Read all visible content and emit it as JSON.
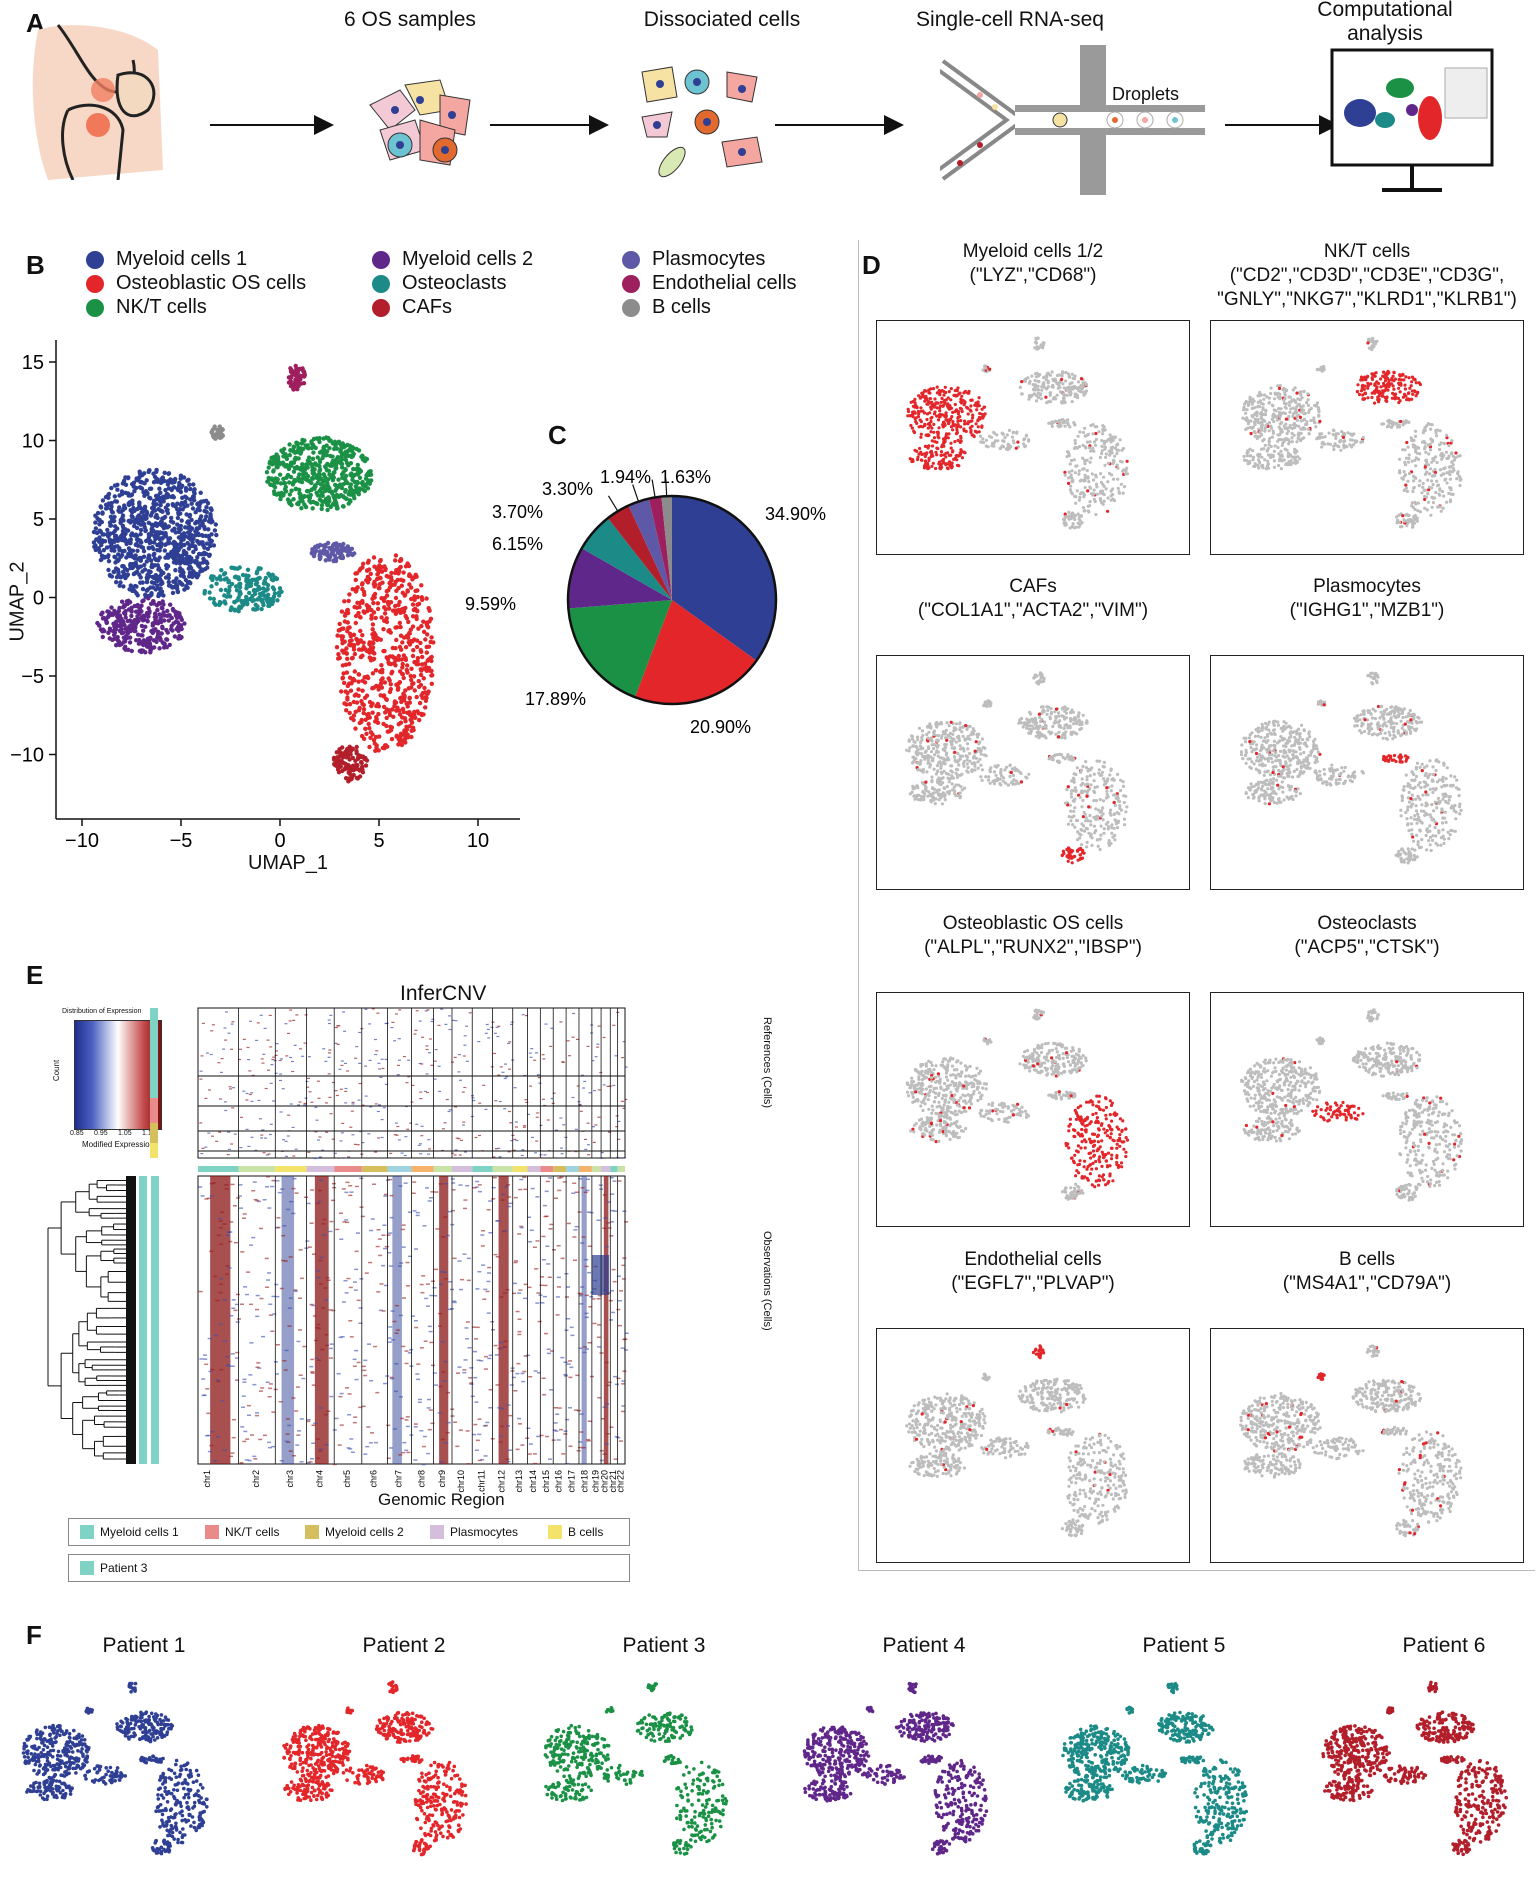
{
  "panels": {
    "A": "A",
    "B": "B",
    "C": "C",
    "D": "D",
    "E": "E",
    "F": "F"
  },
  "workflow": {
    "steps": [
      "6 OS samples",
      "Dissociated cells",
      "Single-cell RNA-seq",
      "Computational analysis"
    ],
    "droplets_label": "Droplets"
  },
  "cell_types": [
    {
      "name": "Myeloid cells 1",
      "color": "#2E3F94"
    },
    {
      "name": "Osteoblastic OS cells",
      "color": "#E3262A"
    },
    {
      "name": "NK/T cells",
      "color": "#1B9146"
    },
    {
      "name": "Myeloid cells 2",
      "color": "#60278A"
    },
    {
      "name": "Osteoclasts",
      "color": "#1C8B87"
    },
    {
      "name": "CAFs",
      "color": "#B21F2B"
    },
    {
      "name": "Plasmocytes",
      "color": "#5E59A7"
    },
    {
      "name": "Endothelial cells",
      "color": "#9E1F5E"
    },
    {
      "name": "B cells",
      "color": "#8C8C8C"
    }
  ],
  "umap_axes": {
    "xlabel": "UMAP_1",
    "ylabel": "UMAP_2",
    "xticks": [
      "−10",
      "−5",
      "0",
      "5",
      "10"
    ],
    "yticks": [
      "15",
      "10",
      "5",
      "0",
      "−5",
      "−10"
    ]
  },
  "chart_data": {
    "type": "pie",
    "categories": [
      "Myeloid cells 1",
      "Osteoblastic OS cells",
      "NK/T cells",
      "Myeloid cells 2",
      "Osteoclasts",
      "CAFs",
      "Plasmocytes",
      "Endothelial cells",
      "B cells"
    ],
    "values": [
      34.9,
      20.9,
      17.89,
      9.59,
      6.15,
      3.7,
      3.3,
      1.94,
      1.63
    ],
    "labels": [
      "34.90%",
      "20.90%",
      "17.89%",
      "9.59%",
      "6.15%",
      "3.70%",
      "3.30%",
      "1.94%",
      "1.63%"
    ],
    "colors": [
      "#2E3F94",
      "#E3262A",
      "#1B9146",
      "#60278A",
      "#1C8B87",
      "#B21F2B",
      "#5E59A7",
      "#9E1F5E",
      "#8C8C8C"
    ]
  },
  "marker_panels": [
    {
      "title": "Myeloid cells 1/2",
      "genes": "(\"LYZ\",\"CD68\")"
    },
    {
      "title": "NK/T cells",
      "genes": "(\"CD2\",\"CD3D\",\"CD3E\",\"CD3G\",",
      "genes2": "\"GNLY\",\"NKG7\",\"KLRD1\",\"KLRB1\")"
    },
    {
      "title": "CAFs",
      "genes": "(\"COL1A1\",\"ACTA2\",\"VIM\")"
    },
    {
      "title": "Plasmocytes",
      "genes": "(\"IGHG1\",\"MZB1\")"
    },
    {
      "title": "Osteoblastic OS cells",
      "genes": "(\"ALPL\",\"RUNX2\",\"IBSP\")"
    },
    {
      "title": "Osteoclasts",
      "genes": "(\"ACP5\",\"CTSK\")"
    },
    {
      "title": "Endothelial cells",
      "genes": "(\"EGFL7\",\"PLVAP\")"
    },
    {
      "title": "B cells",
      "genes": "(\"MS4A1\",\"CD79A\")"
    }
  ],
  "infercnv": {
    "title": "InferCNV",
    "key_title": "Distribution of Expression",
    "key_xlabel": "Modified Expression",
    "key_ylabel": "Count",
    "key_ticks": [
      "0.85",
      "0.95",
      "1.05",
      "1.15"
    ],
    "references_label": "References (Cells)",
    "observations_label": "Observations (Cells)",
    "xlabel": "Genomic Region",
    "chromosomes": [
      "chr1",
      "chr2",
      "chr3",
      "chr4",
      "chr5",
      "chr6",
      "chr7",
      "chr8",
      "chr9",
      "chr10",
      "chr11",
      "chr12",
      "chr13",
      "chr14",
      "chr15",
      "chr16",
      "chr17",
      "chr18",
      "chr19",
      "chr20",
      "chr21",
      "chr22"
    ],
    "ref_legend": [
      {
        "name": "Myeloid cells 1",
        "color": "#7FD3C4"
      },
      {
        "name": "NK/T cells",
        "color": "#E98B8B"
      },
      {
        "name": "Myeloid cells 2",
        "color": "#D4BE5E"
      },
      {
        "name": "Plasmocytes",
        "color": "#D3BEDB"
      },
      {
        "name": "B cells",
        "color": "#F4E36B"
      }
    ],
    "obs_legend": [
      {
        "name": "Patient 3",
        "color": "#7FD3C4"
      }
    ]
  },
  "patients": [
    {
      "name": "Patient 1",
      "color": "#2E3F94"
    },
    {
      "name": "Patient 2",
      "color": "#E3262A"
    },
    {
      "name": "Patient 3",
      "color": "#1B9146"
    },
    {
      "name": "Patient 4",
      "color": "#60278A"
    },
    {
      "name": "Patient 5",
      "color": "#1C8B87"
    },
    {
      "name": "Patient 6",
      "color": "#B21F2B"
    }
  ]
}
